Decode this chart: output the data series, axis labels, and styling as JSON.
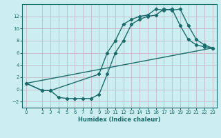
{
  "xlabel": "Humidex (Indice chaleur)",
  "bg_color": "#cceef0",
  "grid_color": "#c8b8c8",
  "line_color": "#1a6b6b",
  "marker": "D",
  "markersize": 2.2,
  "linewidth": 1.0,
  "series1_x": [
    0,
    2,
    3,
    4,
    5,
    6,
    7,
    8,
    9,
    10,
    11,
    12,
    13,
    14,
    15,
    16,
    17,
    18,
    19,
    20,
    21,
    22,
    23
  ],
  "series1_y": [
    1,
    -0.2,
    -0.2,
    -1.3,
    -1.5,
    -1.5,
    -1.5,
    -1.5,
    -0.8,
    2.5,
    6.0,
    8.0,
    10.7,
    11.5,
    12.0,
    12.2,
    13.2,
    13.0,
    13.2,
    10.5,
    8.2,
    7.3,
    6.8
  ],
  "series2_x": [
    0,
    2,
    3,
    9,
    10,
    11,
    12,
    13,
    14,
    15,
    16,
    17,
    18,
    19,
    20,
    21,
    22,
    23
  ],
  "series2_y": [
    1,
    -0.2,
    -0.2,
    2.5,
    6.0,
    8.0,
    10.7,
    11.5,
    12.0,
    12.2,
    13.2,
    13.0,
    13.2,
    10.5,
    8.2,
    7.3,
    7.0,
    6.8
  ],
  "series3_x": [
    0,
    23
  ],
  "series3_y": [
    1,
    6.8
  ],
  "ylim": [
    -3,
    14
  ],
  "xlim": [
    -0.5,
    23.5
  ],
  "yticks": [
    -2,
    0,
    2,
    4,
    6,
    8,
    10,
    12
  ],
  "xticks": [
    0,
    2,
    3,
    4,
    5,
    6,
    7,
    8,
    9,
    10,
    11,
    12,
    13,
    14,
    15,
    16,
    17,
    18,
    19,
    20,
    21,
    22,
    23
  ]
}
